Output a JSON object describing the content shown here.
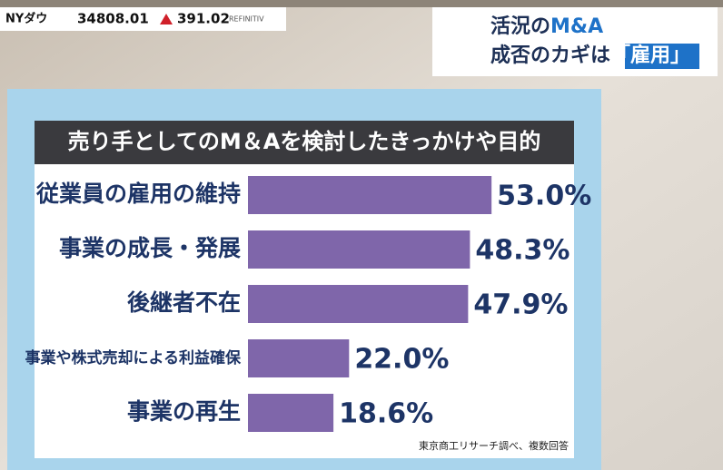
{
  "ticker": {
    "index": "NYダウ",
    "value": "34808.01",
    "change": "391.02",
    "provider": "REFINITIV"
  },
  "headline": {
    "line1": [
      "活況の",
      "M&A"
    ],
    "line2": [
      "成否のカギは",
      "「雇用」"
    ]
  },
  "chart_data": {
    "type": "bar",
    "orientation": "horizontal",
    "title": "売り手としてのM＆Aを検討したきっかけや目的",
    "categories": [
      "従業員の雇用の維持",
      "事業の成長・発展",
      "後継者不在",
      "事業や株式売却による利益確保",
      "事業の再生"
    ],
    "values": [
      53.0,
      48.3,
      47.9,
      22.0,
      18.6
    ],
    "value_labels": [
      "53.0%",
      "48.3%",
      "47.9%",
      "22.0%",
      "18.6%"
    ],
    "color": "#7f66aa",
    "source": "東京商工リサーチ調べ、複数回答"
  }
}
